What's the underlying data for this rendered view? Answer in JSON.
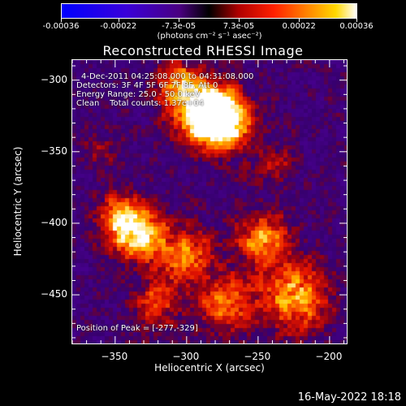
{
  "colorbar": {
    "tick_labels": [
      "-0.00036",
      "-0.00022",
      "-7.3e-05",
      "7.3e-05",
      "0.00022",
      "0.00036"
    ],
    "tick_values": [
      -0.00036,
      -0.00022,
      -7.3e-05,
      7.3e-05,
      0.00022,
      0.00036
    ],
    "range": [
      -0.00036,
      0.00036
    ],
    "units_label": "(photons cm⁻² s⁻¹ asec⁻²)",
    "colors": [
      "#0000ff",
      "#6600cc",
      "#000000",
      "#cc0000",
      "#ff6600",
      "#ffcc00",
      "#ffffff"
    ]
  },
  "chart_data": {
    "type": "heatmap",
    "title": "Reconstructed RHESSI Image",
    "xlabel": "Heliocentric X (arcsec)",
    "ylabel": "Heliocentric Y (arcsec)",
    "xlim": [
      -380,
      -188
    ],
    "ylim": [
      -484,
      -286
    ],
    "x_ticks": [
      -350,
      -300,
      -250,
      -200
    ],
    "x_tick_labels": [
      "−350",
      "−300",
      "−250",
      "−200"
    ],
    "y_ticks": [
      -300,
      -350,
      -400,
      -450
    ],
    "y_tick_labels": [
      "−300",
      "−350",
      "−400",
      "−450"
    ],
    "peak": [
      -277,
      -329
    ],
    "annotations": [
      "4-Dec-2011 04:25:08.000 to 04:31:08.000",
      "Detectors: 3F 4F 5F 6F 7F 8F, Att 0",
      "Energy Range: 25.0 - 50.0 keV",
      "Clean    Total counts: 1.37e+04"
    ],
    "peak_label": "Position of Peak = [-277,-329]"
  },
  "footer": {
    "date": "16-May-2022 18:18"
  }
}
